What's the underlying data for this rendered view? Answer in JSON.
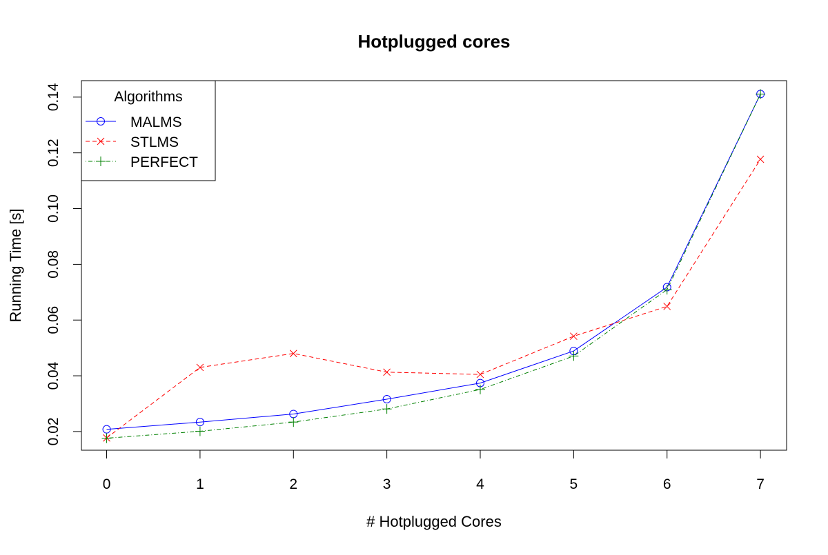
{
  "chart_data": {
    "type": "line",
    "title": "Hotplugged cores",
    "xlabel": "# Hotplugged Cores",
    "ylabel": "Running Time [s]",
    "x": [
      0,
      1,
      2,
      3,
      4,
      5,
      6,
      7
    ],
    "x_ticks": [
      "0",
      "1",
      "2",
      "3",
      "4",
      "5",
      "6",
      "7"
    ],
    "y_ticks": [
      "0.02",
      "0.04",
      "0.06",
      "0.08",
      "0.10",
      "0.12",
      "0.14"
    ],
    "y_tick_values": [
      0.02,
      0.04,
      0.06,
      0.08,
      0.1,
      0.12,
      0.14
    ],
    "xlim": [
      -0.27,
      7.28
    ],
    "ylim": [
      0.0133,
      0.1459
    ],
    "grid": false,
    "legend": {
      "title": "Algorithms",
      "placement": "top-left"
    },
    "series": [
      {
        "name": "MALMS",
        "color": "#0000ff",
        "marker": "circle",
        "line_style": "solid",
        "values": [
          0.0208,
          0.0234,
          0.0263,
          0.0316,
          0.0374,
          0.0489,
          0.0718,
          0.1411
        ]
      },
      {
        "name": "STLMS",
        "color": "#ff0000",
        "marker": "x",
        "line_style": "dashed",
        "values": [
          0.0177,
          0.043,
          0.048,
          0.0413,
          0.0405,
          0.0542,
          0.0649,
          0.1177
        ]
      },
      {
        "name": "PERFECT",
        "color": "#008000",
        "marker": "plus",
        "line_style": "dotdash",
        "values": [
          0.0176,
          0.0201,
          0.0234,
          0.0281,
          0.0351,
          0.0471,
          0.0709,
          0.1411
        ]
      }
    ]
  }
}
